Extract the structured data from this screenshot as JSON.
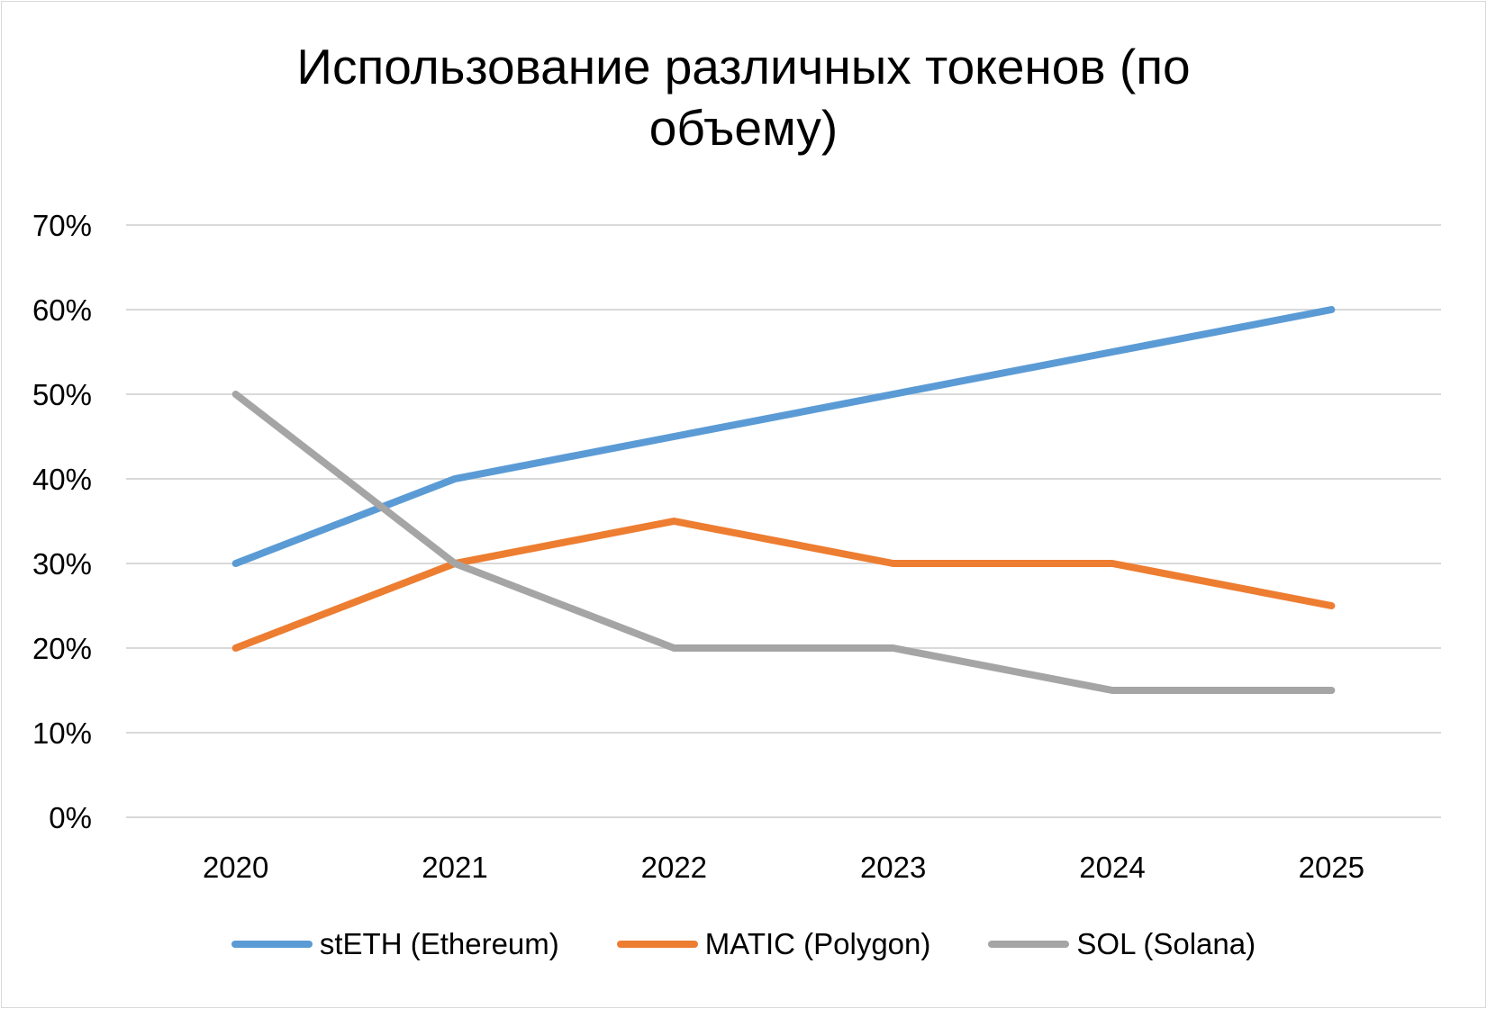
{
  "chart_data": {
    "type": "line",
    "title": "Использование различных токенов (по объему)",
    "title_lines": [
      "Использование различных токенов (по",
      "объему)"
    ],
    "categories": [
      "2020",
      "2021",
      "2022",
      "2023",
      "2024",
      "2025"
    ],
    "ylim": [
      0,
      0.7
    ],
    "yticks": [
      0,
      0.1,
      0.2,
      0.3,
      0.4,
      0.5,
      0.6,
      0.7
    ],
    "ytick_labels": [
      "0%",
      "10%",
      "20%",
      "30%",
      "40%",
      "50%",
      "60%",
      "70%"
    ],
    "grid": true,
    "legend_position": "bottom",
    "series": [
      {
        "name": "stETH (Ethereum)",
        "color": "#5b9bd5",
        "values": [
          0.3,
          0.4,
          0.45,
          0.5,
          0.55,
          0.6
        ]
      },
      {
        "name": "MATIC (Polygon)",
        "color": "#ed7d31",
        "values": [
          0.2,
          0.3,
          0.35,
          0.3,
          0.3,
          0.25
        ]
      },
      {
        "name": "SOL (Solana)",
        "color": "#a5a5a5",
        "values": [
          0.5,
          0.3,
          0.2,
          0.2,
          0.15,
          0.15
        ]
      }
    ]
  }
}
